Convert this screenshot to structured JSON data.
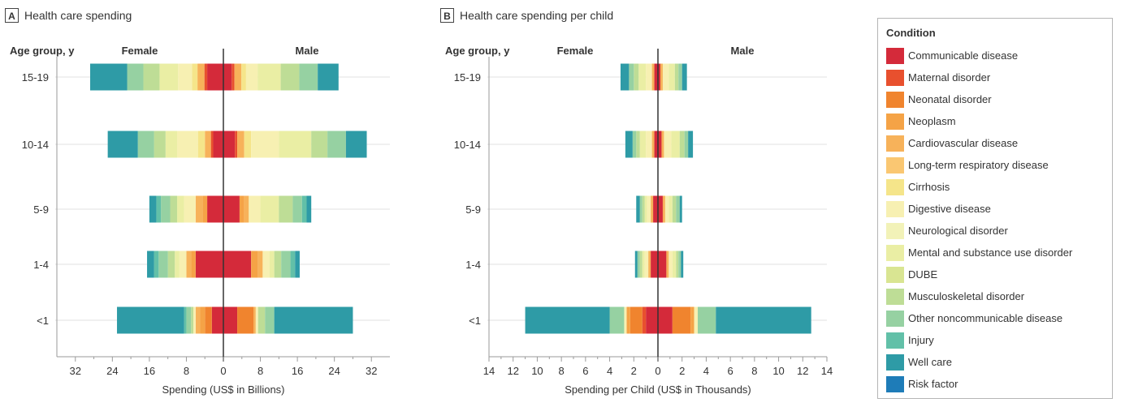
{
  "legend": {
    "title": "Condition",
    "items": [
      {
        "label": "Communicable disease",
        "color": "#d42a3a"
      },
      {
        "label": "Maternal disorder",
        "color": "#e8502e"
      },
      {
        "label": "Neonatal disorder",
        "color": "#f0842e"
      },
      {
        "label": "Neoplasm",
        "color": "#f5a346"
      },
      {
        "label": "Cardiovascular disease",
        "color": "#f7b25a"
      },
      {
        "label": "Long-term respiratory disease",
        "color": "#fac772"
      },
      {
        "label": "Cirrhosis",
        "color": "#f5e58a"
      },
      {
        "label": "Digestive disease",
        "color": "#f7f0b2"
      },
      {
        "label": "Neurological disorder",
        "color": "#f2f2b8"
      },
      {
        "label": "Mental and substance use disorder",
        "color": "#eaeea4"
      },
      {
        "label": "DUBE",
        "color": "#d9e592"
      },
      {
        "label": "Musculoskeletal disorder",
        "color": "#bedd96"
      },
      {
        "label": "Other noncommunicable disease",
        "color": "#96d1a2"
      },
      {
        "label": "Injury",
        "color": "#62c0a8"
      },
      {
        "label": "Well care",
        "color": "#2e9ba6"
      },
      {
        "label": "Risk factor",
        "color": "#1e7cb8"
      }
    ]
  },
  "chart_data": [
    {
      "type": "bar",
      "panel_letter": "A",
      "title": "Health care spending",
      "ylabel": "Age group, y",
      "left_label": "Female",
      "right_label": "Male",
      "xlabel": "Spending (US$ in Billions)",
      "xlim": [
        -36,
        36
      ],
      "xticks": [
        -32,
        -24,
        -16,
        -8,
        0,
        8,
        16,
        24,
        32
      ],
      "xtick_labels": [
        "32",
        "24",
        "16",
        "8",
        "0",
        "8",
        "16",
        "24",
        "32"
      ],
      "categories": [
        "15-19",
        "10-14",
        "5-9",
        "1-4",
        "<1"
      ],
      "bars": [
        {
          "female": [
            {
              "c": 0,
              "v": 3.5
            },
            {
              "c": 1,
              "v": 0.6
            },
            {
              "c": 4,
              "v": 1.5
            },
            {
              "c": 6,
              "v": 1.2
            },
            {
              "c": 7,
              "v": 3.0
            },
            {
              "c": 9,
              "v": 4.0
            },
            {
              "c": 11,
              "v": 3.5
            },
            {
              "c": 12,
              "v": 3.5
            },
            {
              "c": 14,
              "v": 8.0
            }
          ],
          "male": [
            {
              "c": 0,
              "v": 1.8
            },
            {
              "c": 1,
              "v": 0.6
            },
            {
              "c": 4,
              "v": 1.5
            },
            {
              "c": 6,
              "v": 1.0
            },
            {
              "c": 7,
              "v": 2.5
            },
            {
              "c": 9,
              "v": 5.0
            },
            {
              "c": 11,
              "v": 4.0
            },
            {
              "c": 12,
              "v": 4.0
            },
            {
              "c": 14,
              "v": 4.5
            }
          ]
        },
        {
          "female": [
            {
              "c": 0,
              "v": 2.2
            },
            {
              "c": 1,
              "v": 0.5
            },
            {
              "c": 4,
              "v": 1.3
            },
            {
              "c": 6,
              "v": 1.5
            },
            {
              "c": 7,
              "v": 4.5
            },
            {
              "c": 9,
              "v": 2.5
            },
            {
              "c": 11,
              "v": 2.5
            },
            {
              "c": 12,
              "v": 3.5
            },
            {
              "c": 14,
              "v": 6.5
            }
          ],
          "male": [
            {
              "c": 0,
              "v": 2.5
            },
            {
              "c": 1,
              "v": 0.5
            },
            {
              "c": 4,
              "v": 1.5
            },
            {
              "c": 6,
              "v": 1.5
            },
            {
              "c": 7,
              "v": 6.0
            },
            {
              "c": 9,
              "v": 7.0
            },
            {
              "c": 11,
              "v": 3.5
            },
            {
              "c": 12,
              "v": 4.0
            },
            {
              "c": 14,
              "v": 4.5
            }
          ]
        },
        {
          "female": [
            {
              "c": 0,
              "v": 3.5
            },
            {
              "c": 3,
              "v": 1.0
            },
            {
              "c": 4,
              "v": 1.5
            },
            {
              "c": 7,
              "v": 2.5
            },
            {
              "c": 9,
              "v": 1.5
            },
            {
              "c": 11,
              "v": 1.5
            },
            {
              "c": 12,
              "v": 2.0
            },
            {
              "c": 13,
              "v": 1.0
            },
            {
              "c": 14,
              "v": 1.5
            }
          ],
          "male": [
            {
              "c": 0,
              "v": 3.5
            },
            {
              "c": 3,
              "v": 1.0
            },
            {
              "c": 4,
              "v": 1.0
            },
            {
              "c": 7,
              "v": 2.5
            },
            {
              "c": 9,
              "v": 4.0
            },
            {
              "c": 11,
              "v": 3.0
            },
            {
              "c": 12,
              "v": 2.0
            },
            {
              "c": 13,
              "v": 1.0
            },
            {
              "c": 14,
              "v": 1.0
            }
          ]
        },
        {
          "female": [
            {
              "c": 0,
              "v": 6.0
            },
            {
              "c": 3,
              "v": 1.0
            },
            {
              "c": 4,
              "v": 1.0
            },
            {
              "c": 7,
              "v": 1.5
            },
            {
              "c": 9,
              "v": 1.0
            },
            {
              "c": 11,
              "v": 1.5
            },
            {
              "c": 12,
              "v": 2.0
            },
            {
              "c": 13,
              "v": 1.0
            },
            {
              "c": 14,
              "v": 1.5
            }
          ],
          "male": [
            {
              "c": 0,
              "v": 6.0
            },
            {
              "c": 3,
              "v": 1.5
            },
            {
              "c": 4,
              "v": 1.0
            },
            {
              "c": 7,
              "v": 1.5
            },
            {
              "c": 9,
              "v": 1.0
            },
            {
              "c": 11,
              "v": 1.5
            },
            {
              "c": 12,
              "v": 2.0
            },
            {
              "c": 13,
              "v": 1.0
            },
            {
              "c": 14,
              "v": 1.0
            }
          ]
        },
        {
          "female": [
            {
              "c": 0,
              "v": 2.5
            },
            {
              "c": 2,
              "v": 1.5
            },
            {
              "c": 3,
              "v": 1.0
            },
            {
              "c": 4,
              "v": 1.0
            },
            {
              "c": 7,
              "v": 0.5
            },
            {
              "c": 11,
              "v": 0.5
            },
            {
              "c": 12,
              "v": 1.0
            },
            {
              "c": 13,
              "v": 0.5
            },
            {
              "c": 14,
              "v": 14.5
            }
          ],
          "male": [
            {
              "c": 0,
              "v": 3.0
            },
            {
              "c": 2,
              "v": 3.5
            },
            {
              "c": 4,
              "v": 0.5
            },
            {
              "c": 7,
              "v": 0.5
            },
            {
              "c": 11,
              "v": 1.5
            },
            {
              "c": 12,
              "v": 2.0
            },
            {
              "c": 14,
              "v": 17.0
            }
          ]
        }
      ]
    },
    {
      "type": "bar",
      "panel_letter": "B",
      "title": "Health care spending per child",
      "ylabel": "Age group, y",
      "left_label": "Female",
      "right_label": "Male",
      "xlabel": "Spending per Child (US$ in Thousands)",
      "xlim": [
        -14,
        14
      ],
      "xticks": [
        -14,
        -12,
        -10,
        -8,
        -6,
        -4,
        -2,
        0,
        2,
        4,
        6,
        8,
        10,
        12,
        14
      ],
      "xtick_labels": [
        "14",
        "12",
        "10",
        "8",
        "6",
        "4",
        "2",
        "0",
        "2",
        "4",
        "6",
        "8",
        "10",
        "12",
        "14"
      ],
      "categories": [
        "15-19",
        "10-14",
        "5-9",
        "1-4",
        "<1"
      ],
      "bars": [
        {
          "female": [
            {
              "c": 0,
              "v": 0.3
            },
            {
              "c": 4,
              "v": 0.2
            },
            {
              "c": 7,
              "v": 0.5
            },
            {
              "c": 9,
              "v": 0.6
            },
            {
              "c": 11,
              "v": 0.4
            },
            {
              "c": 12,
              "v": 0.4
            },
            {
              "c": 14,
              "v": 0.7
            }
          ],
          "male": [
            {
              "c": 0,
              "v": 0.2
            },
            {
              "c": 4,
              "v": 0.2
            },
            {
              "c": 7,
              "v": 0.5
            },
            {
              "c": 9,
              "v": 0.5
            },
            {
              "c": 11,
              "v": 0.3
            },
            {
              "c": 12,
              "v": 0.3
            },
            {
              "c": 14,
              "v": 0.4
            }
          ]
        },
        {
          "female": [
            {
              "c": 0,
              "v": 0.3
            },
            {
              "c": 4,
              "v": 0.2
            },
            {
              "c": 7,
              "v": 0.5
            },
            {
              "c": 9,
              "v": 0.5
            },
            {
              "c": 11,
              "v": 0.3
            },
            {
              "c": 12,
              "v": 0.3
            },
            {
              "c": 14,
              "v": 0.6
            }
          ],
          "male": [
            {
              "c": 0,
              "v": 0.3
            },
            {
              "c": 4,
              "v": 0.2
            },
            {
              "c": 7,
              "v": 0.6
            },
            {
              "c": 9,
              "v": 0.7
            },
            {
              "c": 11,
              "v": 0.4
            },
            {
              "c": 12,
              "v": 0.3
            },
            {
              "c": 14,
              "v": 0.4
            }
          ]
        },
        {
          "female": [
            {
              "c": 0,
              "v": 0.4
            },
            {
              "c": 4,
              "v": 0.2
            },
            {
              "c": 7,
              "v": 0.3
            },
            {
              "c": 9,
              "v": 0.2
            },
            {
              "c": 11,
              "v": 0.2
            },
            {
              "c": 12,
              "v": 0.2
            },
            {
              "c": 14,
              "v": 0.3
            }
          ],
          "male": [
            {
              "c": 0,
              "v": 0.4
            },
            {
              "c": 4,
              "v": 0.2
            },
            {
              "c": 7,
              "v": 0.3
            },
            {
              "c": 9,
              "v": 0.3
            },
            {
              "c": 11,
              "v": 0.3
            },
            {
              "c": 12,
              "v": 0.3
            },
            {
              "c": 14,
              "v": 0.2
            }
          ]
        },
        {
          "female": [
            {
              "c": 0,
              "v": 0.6
            },
            {
              "c": 4,
              "v": 0.2
            },
            {
              "c": 7,
              "v": 0.3
            },
            {
              "c": 9,
              "v": 0.2
            },
            {
              "c": 11,
              "v": 0.2
            },
            {
              "c": 12,
              "v": 0.2
            },
            {
              "c": 14,
              "v": 0.2
            }
          ],
          "male": [
            {
              "c": 0,
              "v": 0.7
            },
            {
              "c": 4,
              "v": 0.2
            },
            {
              "c": 7,
              "v": 0.3
            },
            {
              "c": 9,
              "v": 0.3
            },
            {
              "c": 11,
              "v": 0.2
            },
            {
              "c": 12,
              "v": 0.2
            },
            {
              "c": 14,
              "v": 0.2
            }
          ]
        },
        {
          "female": [
            {
              "c": 0,
              "v": 1.0
            },
            {
              "c": 1,
              "v": 0.3
            },
            {
              "c": 2,
              "v": 1.0
            },
            {
              "c": 3,
              "v": 0.3
            },
            {
              "c": 7,
              "v": 0.2
            },
            {
              "c": 12,
              "v": 1.2
            },
            {
              "c": 14,
              "v": 7.0
            }
          ],
          "male": [
            {
              "c": 0,
              "v": 1.2
            },
            {
              "c": 2,
              "v": 1.5
            },
            {
              "c": 3,
              "v": 0.3
            },
            {
              "c": 7,
              "v": 0.3
            },
            {
              "c": 12,
              "v": 1.5
            },
            {
              "c": 14,
              "v": 7.9
            }
          ]
        }
      ]
    }
  ]
}
